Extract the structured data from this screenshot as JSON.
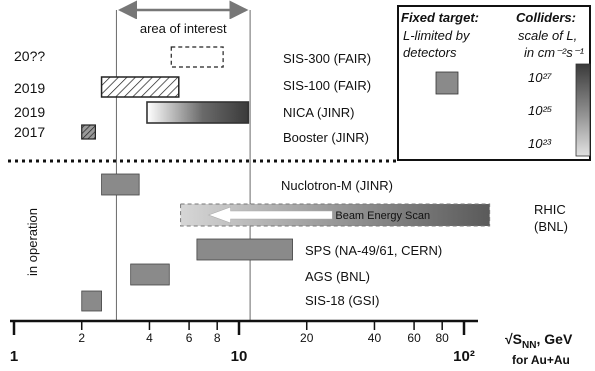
{
  "chart_data": {
    "type": "bar",
    "x_scale": "log",
    "xlim": [
      1,
      140
    ],
    "x_ticks": [
      {
        "value": 1,
        "label": "1",
        "major": true
      },
      {
        "value": 2,
        "label": "2",
        "major": false
      },
      {
        "value": 4,
        "label": "4",
        "major": false
      },
      {
        "value": 6,
        "label": "6",
        "major": false
      },
      {
        "value": 8,
        "label": "8",
        "major": false
      },
      {
        "value": 10,
        "label": "10",
        "major": true
      },
      {
        "value": 20,
        "label": "20",
        "major": false
      },
      {
        "value": 40,
        "label": "40",
        "major": false
      },
      {
        "value": 60,
        "label": "60",
        "major": false
      },
      {
        "value": 80,
        "label": "80",
        "major": false
      },
      {
        "value": 100,
        "label": "10²",
        "major": true
      }
    ],
    "x_unit_label": {
      "prefix": "√S",
      "sub": "NN",
      "suffix": ", GeV"
    },
    "x_sublabel": "for Au+Au",
    "area_of_interest": {
      "label": "area of interest",
      "from": 2.85,
      "to": 11.2
    },
    "side_label": "in operation",
    "facilities": [
      {
        "name": "SIS-300 (FAIR)",
        "year": "20??",
        "min": 5.0,
        "max": 8.5,
        "style": "planned"
      },
      {
        "name": "SIS-100 (FAIR)",
        "year": "2019",
        "min": 2.45,
        "max": 5.4,
        "style": "hatched"
      },
      {
        "name": "NICA (JINR)",
        "year": "2019",
        "min": 3.9,
        "max": 11.0,
        "style": "collider"
      },
      {
        "name": "Booster (JINR)",
        "year": "2017",
        "min": 2.0,
        "max": 2.3,
        "style": "hatched-dark"
      },
      {
        "name": "Nuclotron-M (JINR)",
        "year": "",
        "min": 2.45,
        "max": 3.6,
        "style": "fixed"
      },
      {
        "name": "RHIC\n(BNL)",
        "year": "",
        "min": 5.5,
        "max": 130,
        "style": "collider-bes",
        "band_label": "Beam Energy Scan"
      },
      {
        "name": "SPS (NA-49/61, CERN)",
        "year": "",
        "min": 6.5,
        "max": 17.3,
        "style": "fixed"
      },
      {
        "name": "AGS (BNL)",
        "year": "",
        "min": 3.3,
        "max": 4.9,
        "style": "fixed"
      },
      {
        "name": "SIS-18 (GSI)",
        "year": "",
        "min": 2.0,
        "max": 2.45,
        "style": "fixed"
      }
    ],
    "legend": {
      "fixed_title": "Fixed target:",
      "fixed_text": [
        "L-limited by",
        "detectors"
      ],
      "collider_title": "Colliders:",
      "collider_text": [
        "scale of L,",
        "in cm⁻²s⁻¹"
      ],
      "collider_scale": [
        "10²⁷",
        "10²⁵",
        "10²³"
      ],
      "colors": {
        "fixed": "#8a8a8a",
        "dark": "#555555",
        "light": "#dddddd"
      }
    }
  }
}
